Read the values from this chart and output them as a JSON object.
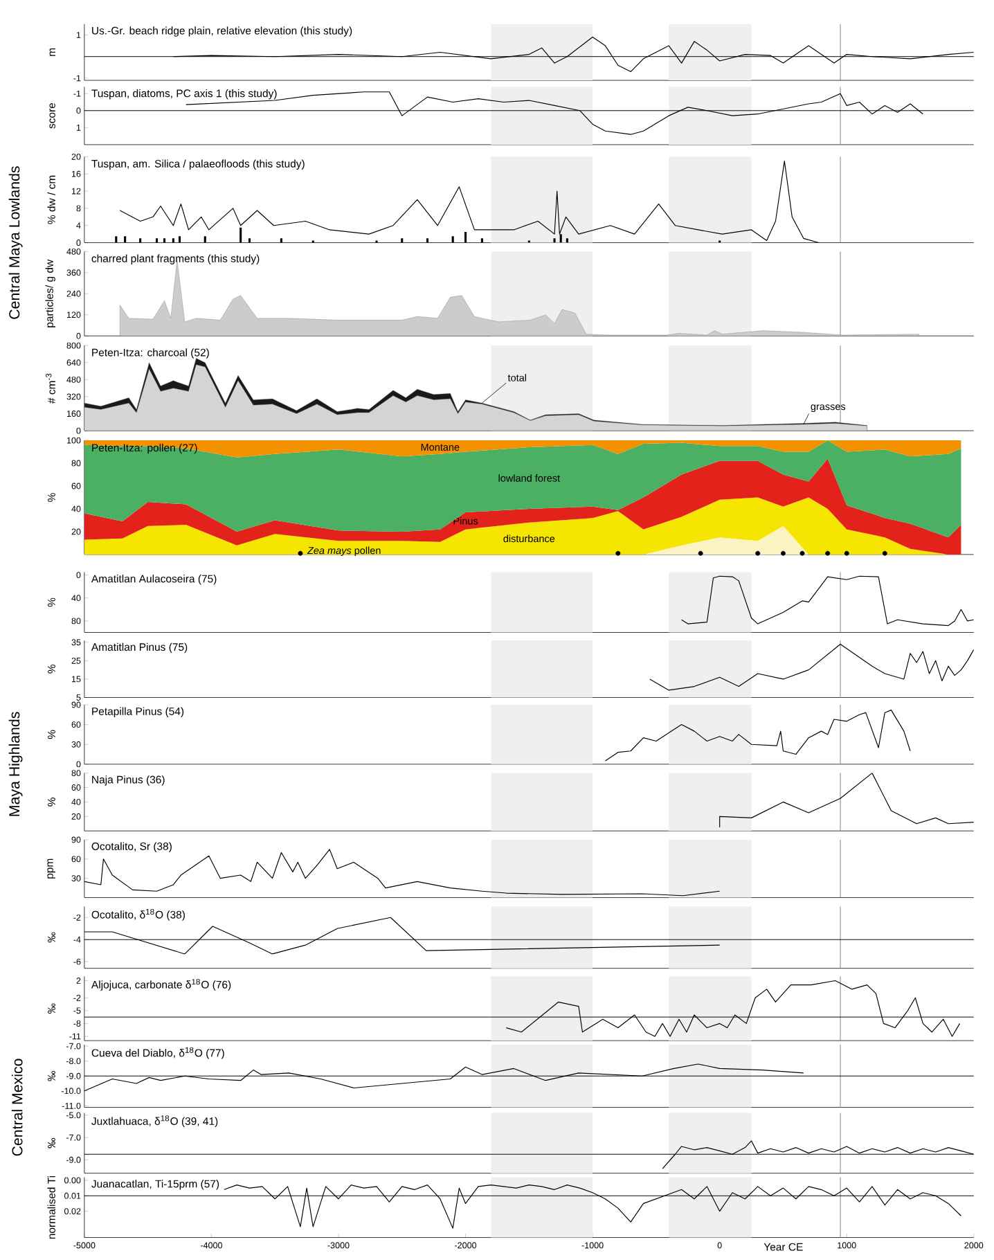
{
  "chart_data": [
    {
      "type": "line",
      "title": "Us.-Gr. beach ridge plain, relative elevation (this study)",
      "ylabel": "m",
      "xlim": [
        -5000,
        2000
      ],
      "ylim": [
        -1.1,
        1.5
      ],
      "yticks": [
        -1,
        1
      ],
      "tick_labels": "y",
      "bands": [
        {
          "axis": "x",
          "from": -1800,
          "to": -1000,
          "color": "#efefef"
        },
        {
          "axis": "x",
          "from": -400,
          "to": 250,
          "color": "#efefef"
        }
      ],
      "ref_lines": [
        {
          "axis": "x",
          "value": 950,
          "color": "#808080"
        },
        {
          "axis": "y",
          "value": 0,
          "color": "#000000"
        }
      ],
      "series": [
        {
          "color": "#000000",
          "x": [
            -4300,
            -4000,
            -3500,
            -3000,
            -2500,
            -2200,
            -2000,
            -1800,
            -1500,
            -1400,
            -1300,
            -1200,
            -1000,
            -900,
            -800,
            -700,
            -600,
            -400,
            -300,
            -200,
            -100,
            0,
            200,
            400,
            500,
            600,
            700,
            900,
            1000,
            1200,
            1500,
            1800,
            2000
          ],
          "values": [
            0,
            0.05,
            0,
            0.1,
            0,
            0.2,
            0.05,
            -0.1,
            0.1,
            0.4,
            -0.3,
            0,
            0.9,
            0.5,
            -0.4,
            -0.7,
            -0.1,
            0.5,
            -0.3,
            0.7,
            0.3,
            -0.2,
            0.1,
            0.05,
            -0.3,
            0.1,
            0.5,
            -0.3,
            0.1,
            0,
            -0.1,
            0.1,
            0.2
          ]
        }
      ]
    },
    {
      "type": "line",
      "title": "Tuspan, diatoms, PC axis 1 (this study)",
      "ylabel": "score",
      "xlim": [
        -5000,
        2000
      ],
      "ylim": [
        2,
        -1.4
      ],
      "yticks": [
        -1,
        0,
        1
      ],
      "tick_labels": "y",
      "bands": [
        {
          "axis": "x",
          "from": -1800,
          "to": -1000,
          "color": "#efefef"
        },
        {
          "axis": "x",
          "from": -400,
          "to": 250,
          "color": "#efefef"
        }
      ],
      "ref_lines": [
        {
          "axis": "x",
          "value": 950,
          "color": "#808080"
        },
        {
          "axis": "y",
          "value": 0,
          "color": "#000000"
        }
      ],
      "series": [
        {
          "color": "#000000",
          "x": [
            -4200,
            -3500,
            -3200,
            -2800,
            -2600,
            -2500,
            -2300,
            -2100,
            -1900,
            -1700,
            -1500,
            -1300,
            -1100,
            -1000,
            -900,
            -800,
            -700,
            -600,
            -400,
            -250,
            -100,
            100,
            300,
            500,
            700,
            800,
            950,
            1000,
            1100,
            1200,
            1300,
            1400,
            1500,
            1600
          ],
          "values": [
            -0.35,
            -0.6,
            -0.9,
            -1.1,
            -1.1,
            0.3,
            -0.8,
            -0.5,
            -0.7,
            -0.5,
            -0.6,
            -0.3,
            0,
            0.8,
            1.2,
            1.3,
            1.4,
            1.2,
            0.3,
            -0.2,
            0,
            0.3,
            0.2,
            -0.1,
            -0.4,
            -0.5,
            -1.0,
            -0.3,
            -0.5,
            0.2,
            -0.3,
            0.1,
            -0.4,
            0.2
          ]
        }
      ]
    },
    {
      "type": "line",
      "title": "Tuspan, am. Silica / palaeofloods (this study)",
      "ylabel": "% dw / cm",
      "xlim": [
        -5000,
        2000
      ],
      "ylim": [
        0,
        20
      ],
      "yticks": [
        0,
        4,
        8,
        12,
        16,
        20
      ],
      "tick_labels": "y",
      "annotations": [
        "Central Maya Lowlands"
      ],
      "bands": [
        {
          "axis": "x",
          "from": -1800,
          "to": -1000,
          "color": "#efefef"
        },
        {
          "axis": "x",
          "from": -400,
          "to": 250,
          "color": "#efefef"
        }
      ],
      "ref_lines": [
        {
          "axis": "x",
          "value": 950,
          "color": "#808080"
        }
      ],
      "series": [
        {
          "color": "#000000",
          "x": [
            -4720,
            -4560,
            -4460,
            -4400,
            -4300,
            -4240,
            -4180,
            -4080,
            -4020,
            -3830,
            -3770,
            -3640,
            -3510,
            -3260,
            -3070,
            -2760,
            -2570,
            -2380,
            -2220,
            -2050,
            -1930,
            -1620,
            -1430,
            -1300,
            -1280,
            -1260,
            -1210,
            -1110,
            -860,
            -670,
            -480,
            -350,
            -170,
            20,
            250,
            370,
            440,
            510,
            570,
            660,
            780
          ],
          "values": [
            7.5,
            5,
            6,
            8.5,
            4,
            9,
            3,
            6,
            3,
            8,
            4,
            7.5,
            4,
            5,
            3,
            2,
            4,
            10,
            4,
            13,
            3,
            3,
            5,
            2,
            12,
            2,
            6,
            2,
            4,
            2,
            9,
            4,
            3,
            2,
            3,
            0.5,
            5,
            19,
            6,
            1,
            0
          ]
        },
        {
          "type": "bar",
          "color": "#000000",
          "x": [
            -4750,
            -4680,
            -4560,
            -4430,
            -4370,
            -4300,
            -4250,
            -4050,
            -3770,
            -3700,
            -3450,
            -3200,
            -2700,
            -2500,
            -2300,
            -2100,
            -2000,
            -1870,
            -1500,
            -1300,
            -1250,
            -1200,
            0
          ],
          "values": [
            1.5,
            1.5,
            1,
            1,
            1,
            1,
            1.5,
            1.5,
            3.5,
            1,
            1,
            0.5,
            0.5,
            1,
            1,
            1.5,
            2.5,
            1,
            0.5,
            1,
            2,
            1,
            0.5
          ]
        }
      ]
    },
    {
      "type": "area",
      "title": "charred plant fragments (this study)",
      "ylabel": "particles/ g dw",
      "xlim": [
        -5000,
        2000
      ],
      "ylim": [
        0,
        480
      ],
      "yticks": [
        0,
        120,
        240,
        360,
        480
      ],
      "tick_labels": "y",
      "bands": [
        {
          "axis": "x",
          "from": -1800,
          "to": -1000,
          "color": "#efefef"
        },
        {
          "axis": "x",
          "from": -400,
          "to": 250,
          "color": "#efefef"
        }
      ],
      "ref_lines": [
        {
          "axis": "x",
          "value": 950,
          "color": "#808080"
        }
      ],
      "series": [
        {
          "color": "#cccccc",
          "x": [
            -4720,
            -4650,
            -4460,
            -4370,
            -4320,
            -4270,
            -4210,
            -4120,
            -3930,
            -3830,
            -3770,
            -3640,
            -3390,
            -3010,
            -2500,
            -2380,
            -2220,
            -2120,
            -2030,
            -1930,
            -1740,
            -1490,
            -1370,
            -1300,
            -1240,
            -1140,
            -1050,
            -860,
            -420,
            -320,
            -100,
            -40,
            20,
            340,
            660,
            970,
            1570
          ],
          "values": [
            175,
            100,
            95,
            200,
            100,
            430,
            80,
            100,
            90,
            210,
            230,
            100,
            100,
            90,
            90,
            110,
            100,
            220,
            230,
            110,
            80,
            90,
            120,
            70,
            150,
            130,
            10,
            5,
            5,
            15,
            5,
            30,
            10,
            30,
            20,
            5,
            10
          ]
        }
      ]
    },
    {
      "type": "area",
      "title": "Peten-Itza: charcoal (52)",
      "ylabel": "# cm$^{-3}$",
      "xlim": [
        -5000,
        2000
      ],
      "ylim": [
        0,
        800
      ],
      "yticks": [
        0,
        160,
        320,
        480,
        640,
        800
      ],
      "tick_labels": "y",
      "bands": [
        {
          "axis": "x",
          "from": -1800,
          "to": -1000,
          "color": "#efefef"
        },
        {
          "axis": "x",
          "from": -400,
          "to": 250,
          "color": "#efefef"
        }
      ],
      "ref_lines": [
        {
          "axis": "x",
          "value": 950,
          "color": "#808080"
        }
      ],
      "x": [
        -5000,
        -4870,
        -4650,
        -4590,
        -4490,
        -4400,
        -4300,
        -4180,
        -4120,
        -4050,
        -3890,
        -3790,
        -3670,
        -3520,
        -3330,
        -3170,
        -3010,
        -2850,
        -2760,
        -2570,
        -2470,
        -2380,
        -2250,
        -2120,
        -2060,
        -2000,
        -1870,
        -1620,
        -1490,
        -1370,
        -1110,
        -990,
        -610,
        20,
        660,
        910,
        1160
      ],
      "series": [
        {
          "name": "total",
          "color": "#1a1a1a",
          "values": [
            260,
            230,
            310,
            200,
            640,
            420,
            470,
            420,
            680,
            640,
            260,
            520,
            290,
            300,
            190,
            300,
            180,
            210,
            200,
            380,
            310,
            390,
            340,
            350,
            180,
            290,
            260,
            180,
            100,
            150,
            160,
            100,
            60,
            50,
            70,
            80,
            50
          ]
        },
        {
          "name": "grasses",
          "color": "#d4d4d4",
          "values": [
            220,
            200,
            260,
            170,
            580,
            370,
            400,
            370,
            620,
            600,
            220,
            470,
            240,
            250,
            160,
            250,
            150,
            170,
            170,
            330,
            270,
            330,
            290,
            300,
            160,
            270,
            250,
            170,
            95,
            140,
            150,
            90,
            55,
            45,
            60,
            70,
            45
          ]
        }
      ]
    },
    {
      "type": "area",
      "stacked": true,
      "title": "Peten-Itza: pollen (27)",
      "ylabel": "%",
      "xlim": [
        -5000,
        2000
      ],
      "ylim": [
        0,
        100
      ],
      "yticks": [
        20,
        40,
        60,
        80,
        100
      ],
      "tick_labels": "y",
      "ref_lines": [
        {
          "axis": "x",
          "value": 950,
          "color": "#808080"
        }
      ],
      "x": [
        -5000,
        -4700,
        -4500,
        -4200,
        -3800,
        -3500,
        -3000,
        -2500,
        -2200,
        -2000,
        -1500,
        -1000,
        -800,
        -600,
        -300,
        0,
        300,
        500,
        700,
        850,
        1000,
        1300,
        1500,
        1800,
        1900
      ],
      "series": [
        {
          "color": "#fbf3c4",
          "values": [
            0,
            0,
            0,
            0,
            0,
            0,
            0,
            0,
            0,
            0,
            0,
            0,
            0,
            0,
            8,
            15,
            12,
            25,
            0,
            0,
            0,
            0,
            0,
            0,
            0
          ]
        },
        {
          "name": "disturbance",
          "color": "#f6e500",
          "values": [
            13,
            14,
            25,
            26,
            8,
            18,
            12,
            12,
            11,
            22,
            28,
            32,
            38,
            22,
            25,
            33,
            38,
            17,
            50,
            40,
            22,
            15,
            5,
            0,
            0
          ]
        },
        {
          "name": "Pinus",
          "color": "#e3231b",
          "values": [
            23,
            15,
            21,
            18,
            12,
            12,
            9,
            8,
            11,
            15,
            12,
            10,
            1,
            28,
            37,
            34,
            32,
            28,
            14,
            44,
            21,
            17,
            22,
            15,
            26
          ]
        },
        {
          "name": "lowland forest",
          "color": "#4bb064",
          "values": [
            60,
            66,
            49,
            49,
            65,
            58,
            71,
            66,
            66,
            53,
            54,
            54,
            49,
            47,
            28,
            13,
            13,
            20,
            26,
            16,
            47,
            60,
            59,
            73,
            67
          ]
        },
        {
          "name": "Montane",
          "color": "#f39200",
          "values": [
            4,
            5,
            5,
            7,
            15,
            12,
            8,
            14,
            12,
            10,
            6,
            4,
            12,
            3,
            2,
            5,
            5,
            10,
            10,
            0,
            10,
            8,
            14,
            12,
            7
          ]
        },
        {
          "type": "scatter",
          "name": "*Zea mays* pollen",
          "color": "#000000",
          "x": [
            -3300,
            -800,
            -150,
            300,
            500,
            650,
            850,
            1000,
            1300
          ],
          "values": [
            1,
            1,
            1,
            1,
            1,
            1,
            1,
            1,
            1
          ]
        }
      ]
    },
    {
      "type": "line",
      "title": "Amatitlan Aulacoseira (75)",
      "ylabel": "%",
      "xlim": [
        -5000,
        2000
      ],
      "ylim": [
        100,
        -5
      ],
      "yticks": [
        0,
        40,
        80
      ],
      "tick_labels": "y",
      "bands": [
        {
          "axis": "x",
          "from": -1800,
          "to": -1000,
          "color": "#efefef"
        },
        {
          "axis": "x",
          "from": -400,
          "to": 250,
          "color": "#efefef"
        }
      ],
      "ref_lines": [
        {
          "axis": "x",
          "value": 950,
          "color": "#808080"
        }
      ],
      "series": [
        {
          "color": "#000000",
          "x": [
            -300,
            -250,
            -100,
            -50,
            0,
            100,
            150,
            250,
            300,
            500,
            650,
            700,
            850,
            1000,
            1100,
            1250,
            1320,
            1400,
            1600,
            1800,
            1850,
            1900,
            1950,
            2000
          ],
          "values": [
            78,
            85,
            82,
            5,
            2,
            3,
            10,
            75,
            85,
            65,
            45,
            47,
            3,
            8,
            2,
            3,
            85,
            78,
            85,
            88,
            80,
            60,
            80,
            78
          ]
        }
      ]
    },
    {
      "type": "line",
      "title": "Amatitlan Pinus (75)",
      "ylabel": "%",
      "xlim": [
        -5000,
        2000
      ],
      "ylim": [
        5,
        36
      ],
      "yticks": [
        5,
        15,
        25,
        35
      ],
      "tick_labels": "y",
      "bands": [
        {
          "axis": "x",
          "from": -1800,
          "to": -1000,
          "color": "#efefef"
        },
        {
          "axis": "x",
          "from": -400,
          "to": 250,
          "color": "#efefef"
        }
      ],
      "ref_lines": [
        {
          "axis": "x",
          "value": 950,
          "color": "#808080"
        }
      ],
      "series": [
        {
          "color": "#000000",
          "x": [
            -550,
            -400,
            -200,
            0,
            150,
            300,
            500,
            700,
            950,
            1200,
            1300,
            1450,
            1500,
            1550,
            1600,
            1650,
            1700,
            1750,
            1800,
            1850,
            1900,
            1950,
            2000
          ],
          "values": [
            15,
            9,
            11,
            16,
            11,
            18,
            15,
            20,
            34,
            22,
            18,
            15,
            29,
            24,
            30,
            18,
            25,
            14,
            22,
            17,
            20,
            25,
            31
          ]
        }
      ]
    },
    {
      "type": "line",
      "title": "Petapilla Pinus (54)",
      "ylabel": "%",
      "xlim": [
        -5000,
        2000
      ],
      "ylim": [
        0,
        90
      ],
      "yticks": [
        0,
        30,
        60,
        90
      ],
      "tick_labels": "y",
      "annotations": [
        "Maya Highlands"
      ],
      "bands": [
        {
          "axis": "x",
          "from": -1800,
          "to": -1000,
          "color": "#efefef"
        },
        {
          "axis": "x",
          "from": -400,
          "to": 250,
          "color": "#efefef"
        }
      ],
      "ref_lines": [
        {
          "axis": "x",
          "value": 950,
          "color": "#808080"
        }
      ],
      "series": [
        {
          "color": "#000000",
          "x": [
            -900,
            -800,
            -700,
            -600,
            -500,
            -300,
            -200,
            -100,
            0,
            100,
            150,
            250,
            450,
            480,
            500,
            600,
            700,
            800,
            850,
            900,
            1000,
            1100,
            1150,
            1250,
            1300,
            1350,
            1450,
            1500
          ],
          "values": [
            5,
            18,
            20,
            40,
            35,
            60,
            50,
            35,
            42,
            35,
            45,
            30,
            28,
            50,
            20,
            15,
            40,
            50,
            45,
            68,
            65,
            75,
            78,
            25,
            78,
            82,
            50,
            20
          ]
        }
      ]
    },
    {
      "type": "line",
      "title": "Naja Pinus (36)",
      "ylabel": "%",
      "xlim": [
        -5000,
        2000
      ],
      "ylim": [
        0,
        80
      ],
      "yticks": [
        20,
        40,
        60,
        80
      ],
      "tick_labels": "y",
      "bands": [
        {
          "axis": "x",
          "from": -1800,
          "to": -1000,
          "color": "#efefef"
        },
        {
          "axis": "x",
          "from": -400,
          "to": 250,
          "color": "#efefef"
        }
      ],
      "ref_lines": [
        {
          "axis": "x",
          "value": 950,
          "color": "#808080"
        }
      ],
      "series": [
        {
          "color": "#000000",
          "x": [
            0,
            0,
            250,
            500,
            700,
            950,
            1200,
            1350,
            1550,
            1700,
            1800,
            2000
          ],
          "values": [
            5,
            20,
            18,
            40,
            25,
            45,
            80,
            28,
            10,
            18,
            10,
            12
          ]
        }
      ]
    },
    {
      "type": "line",
      "title": "Ocotalito, Sr (38)",
      "ylabel": "ppm",
      "xlim": [
        -5000,
        2000
      ],
      "ylim": [
        0,
        90
      ],
      "yticks": [
        30,
        60,
        90
      ],
      "tick_labels": "y",
      "bands": [
        {
          "axis": "x",
          "from": -1800,
          "to": -1000,
          "color": "#efefef"
        },
        {
          "axis": "x",
          "from": -400,
          "to": 250,
          "color": "#efefef"
        }
      ],
      "ref_lines": [
        {
          "axis": "x",
          "value": 950,
          "color": "#808080"
        }
      ],
      "series": [
        {
          "color": "#000000",
          "x": [
            -5000,
            -4870,
            -4850,
            -4780,
            -4620,
            -4430,
            -4300,
            -4240,
            -4020,
            -3930,
            -3770,
            -3690,
            -3640,
            -3520,
            -3450,
            -3360,
            -3320,
            -3260,
            -3170,
            -3070,
            -3010,
            -2880,
            -2690,
            -2630,
            -2380,
            -2120,
            -1870,
            -1680,
            -1240,
            -610,
            -290,
            0
          ],
          "values": [
            25,
            20,
            60,
            35,
            12,
            10,
            20,
            35,
            65,
            30,
            35,
            25,
            55,
            30,
            70,
            40,
            55,
            30,
            50,
            75,
            45,
            55,
            30,
            15,
            25,
            15,
            10,
            7,
            5,
            6,
            3,
            10
          ]
        }
      ]
    },
    {
      "type": "line",
      "title": "Ocotalito, δ$^{18}$O (38)",
      "ylabel": "‰",
      "xlim": [
        -5000,
        2000
      ],
      "ylim": [
        -6.6,
        -1
      ],
      "yticks": [
        -6,
        -4,
        -2
      ],
      "tick_labels": "y",
      "bands": [
        {
          "axis": "x",
          "from": -1800,
          "to": -1000,
          "color": "#efefef"
        },
        {
          "axis": "x",
          "from": -400,
          "to": 250,
          "color": "#efefef"
        }
      ],
      "ref_lines": [
        {
          "axis": "x",
          "value": 950,
          "color": "#808080"
        },
        {
          "axis": "y",
          "value": -4,
          "color": "#000000"
        }
      ],
      "series": [
        {
          "color": "#000000",
          "x": [
            -5000,
            -4780,
            -4210,
            -3990,
            -3700,
            -3520,
            -3260,
            -3010,
            -2590,
            -2310,
            0
          ],
          "values": [
            -3.3,
            -3.3,
            -5.3,
            -2.8,
            -4.3,
            -5.3,
            -4.5,
            -3,
            -2,
            -5,
            -4.5
          ]
        }
      ]
    },
    {
      "type": "line",
      "title": "Aljojuca, carbonate δ$^{18}$O (76)",
      "ylabel": "‰",
      "xlim": [
        -5000,
        2000
      ],
      "ylim": [
        -12,
        3
      ],
      "yticks": [
        -11,
        -8,
        -5,
        -2,
        2
      ],
      "tick_labels": "y",
      "bands": [
        {
          "axis": "x",
          "from": -1800,
          "to": -1000,
          "color": "#efefef"
        },
        {
          "axis": "x",
          "from": -400,
          "to": 250,
          "color": "#efefef"
        }
      ],
      "ref_lines": [
        {
          "axis": "x",
          "value": 950,
          "color": "#808080"
        },
        {
          "axis": "y",
          "value": -6.5,
          "color": "#000000"
        }
      ],
      "series": [
        {
          "color": "#000000",
          "x": [
            -1680,
            -1560,
            -1270,
            -1110,
            -1080,
            -920,
            -800,
            -670,
            -580,
            -510,
            -450,
            -390,
            -320,
            -260,
            -200,
            -100,
            0,
            60,
            120,
            210,
            280,
            370,
            440,
            500,
            560,
            720,
            910,
            1040,
            1160,
            1230,
            1290,
            1380,
            1480,
            1540,
            1600,
            1670,
            1760,
            1830,
            1890
          ],
          "values": [
            -9,
            -10,
            -3,
            -4,
            -10,
            -7,
            -9,
            -6,
            -10,
            -11,
            -8,
            -11,
            -7,
            -10,
            -6,
            -9,
            -8,
            -9,
            -6,
            -8,
            -2,
            0,
            -3,
            -1,
            1,
            1,
            2,
            0,
            1,
            -1,
            -8,
            -9,
            -5,
            -2,
            -8,
            -10,
            -7,
            -11,
            -8
          ]
        }
      ]
    },
    {
      "type": "line",
      "title": "Cueva del Diablo, δ$^{18}$O (77)",
      "ylabel": "‰",
      "xlim": [
        -5000,
        2000
      ],
      "ylim": [
        -11.1,
        -6.9
      ],
      "yticks": [
        {
          "value": -11,
          "label": "-11.0"
        },
        {
          "value": -10,
          "label": "-10.0"
        },
        {
          "value": -9,
          "label": "-9.0"
        },
        {
          "value": -8,
          "label": "-8.0"
        },
        {
          "value": -7,
          "label": "-7.0"
        }
      ],
      "tick_labels": "y",
      "annotations": [
        "Central Mexico"
      ],
      "bands": [
        {
          "axis": "x",
          "from": -1800,
          "to": -1000,
          "color": "#efefef"
        },
        {
          "axis": "x",
          "from": -400,
          "to": 250,
          "color": "#efefef"
        }
      ],
      "ref_lines": [
        {
          "axis": "x",
          "value": 950,
          "color": "#808080"
        },
        {
          "axis": "y",
          "value": -9,
          "color": "#000000"
        }
      ],
      "series": [
        {
          "color": "#000000",
          "x": [
            -5000,
            -4780,
            -4590,
            -4490,
            -4400,
            -4210,
            -4020,
            -3770,
            -3670,
            -3610,
            -3390,
            -3140,
            -2880,
            -2500,
            -2120,
            -2000,
            -1870,
            -1620,
            -1370,
            -1110,
            -610,
            -360,
            -170,
            0,
            340,
            660
          ],
          "values": [
            -10,
            -9.2,
            -9.5,
            -9.1,
            -9.3,
            -9,
            -9.2,
            -9.3,
            -8.6,
            -8.9,
            -8.8,
            -9.2,
            -9.8,
            -9.5,
            -9.2,
            -8.4,
            -8.9,
            -8.5,
            -9.3,
            -8.8,
            -9,
            -8.5,
            -8.2,
            -8.5,
            -8.6,
            -8.8
          ]
        }
      ]
    },
    {
      "type": "line",
      "title": "Juxtlahuaca, δ$^{18}$O (39, 41)",
      "ylabel": "‰",
      "xlim": [
        -5000,
        2000
      ],
      "ylim": [
        -10.2,
        -4.8
      ],
      "yticks": [
        {
          "value": -9,
          "label": "-9.0"
        },
        {
          "value": -7,
          "label": "-7.0"
        },
        {
          "value": -5,
          "label": "-5.0"
        }
      ],
      "tick_labels": "y",
      "bands": [
        {
          "axis": "x",
          "from": -1800,
          "to": -1000,
          "color": "#efefef"
        },
        {
          "axis": "x",
          "from": -400,
          "to": 250,
          "color": "#efefef"
        }
      ],
      "ref_lines": [
        {
          "axis": "x",
          "value": 950,
          "color": "#808080"
        },
        {
          "axis": "y",
          "value": -8.5,
          "color": "#000000"
        }
      ],
      "series": [
        {
          "color": "#000000",
          "x": [
            -450,
            -350,
            -300,
            -200,
            -100,
            0,
            100,
            200,
            250,
            300,
            400,
            500,
            600,
            700,
            800,
            900,
            1000,
            1100,
            1200,
            1300,
            1400,
            1500,
            1600,
            1700,
            1800,
            1900,
            2000
          ],
          "values": [
            -9.8,
            -8.5,
            -7.8,
            -8.1,
            -7.9,
            -8.2,
            -8.5,
            -7.9,
            -7.3,
            -8.4,
            -8,
            -8.3,
            -7.9,
            -8.4,
            -8,
            -8.3,
            -7.8,
            -8.4,
            -8,
            -8.3,
            -7.9,
            -8.4,
            -8,
            -8.3,
            -7.9,
            -8.2,
            -8.5
          ]
        }
      ]
    },
    {
      "type": "line",
      "title": "Juanacatlan, Ti-15prm (57)",
      "ylabel": "normalised Ti",
      "xlabel": "Year CE",
      "xlim": [
        -5000,
        2000
      ],
      "xticks": [
        -5000,
        -4000,
        -3000,
        -2000,
        -1000,
        0,
        1000,
        2000
      ],
      "ylim": [
        0.037,
        -0.002
      ],
      "yticks": [
        {
          "value": 0,
          "label": "0.00"
        },
        0.01,
        0.02
      ],
      "bands": [
        {
          "axis": "x",
          "from": -1800,
          "to": -1000,
          "color": "#efefef"
        },
        {
          "axis": "x",
          "from": -400,
          "to": 250,
          "color": "#efefef"
        }
      ],
      "ref_lines": [
        {
          "axis": "x",
          "value": 950,
          "color": "#808080"
        },
        {
          "axis": "y",
          "value": 0.01,
          "color": "#000000"
        }
      ],
      "series": [
        {
          "color": "#000000",
          "x": [
            -3900,
            -3800,
            -3700,
            -3600,
            -3500,
            -3400,
            -3300,
            -3250,
            -3200,
            -3100,
            -3000,
            -2900,
            -2800,
            -2700,
            -2600,
            -2500,
            -2400,
            -2300,
            -2200,
            -2100,
            -2050,
            -2000,
            -1900,
            -1800,
            -1700,
            -1600,
            -1500,
            -1400,
            -1300,
            -1200,
            -1100,
            -1000,
            -900,
            -800,
            -700,
            -600,
            -500,
            -400,
            -300,
            -200,
            -100,
            0,
            100,
            200,
            300,
            400,
            500,
            600,
            700,
            800,
            900,
            1000,
            1100,
            1200,
            1300,
            1400,
            1500,
            1600,
            1700,
            1800,
            1900
          ],
          "values": [
            0.006,
            0.003,
            0.005,
            0.004,
            0.012,
            0.004,
            0.03,
            0.005,
            0.03,
            0.004,
            0.012,
            0.003,
            0.005,
            0.004,
            0.014,
            0.004,
            0.006,
            0.003,
            0.012,
            0.031,
            0.005,
            0.015,
            0.004,
            0.003,
            0.004,
            0.005,
            0.003,
            0.004,
            0.006,
            0.003,
            0.005,
            0.008,
            0.012,
            0.018,
            0.027,
            0.015,
            0.012,
            0.009,
            0.006,
            0.012,
            0.004,
            0.02,
            0.008,
            0.012,
            0.004,
            0.01,
            0.005,
            0.012,
            0.004,
            0.006,
            0.01,
            0.005,
            0.014,
            0.004,
            0.016,
            0.006,
            0.012,
            0.008,
            0.01,
            0.015,
            0.023
          ]
        }
      ]
    }
  ]
}
